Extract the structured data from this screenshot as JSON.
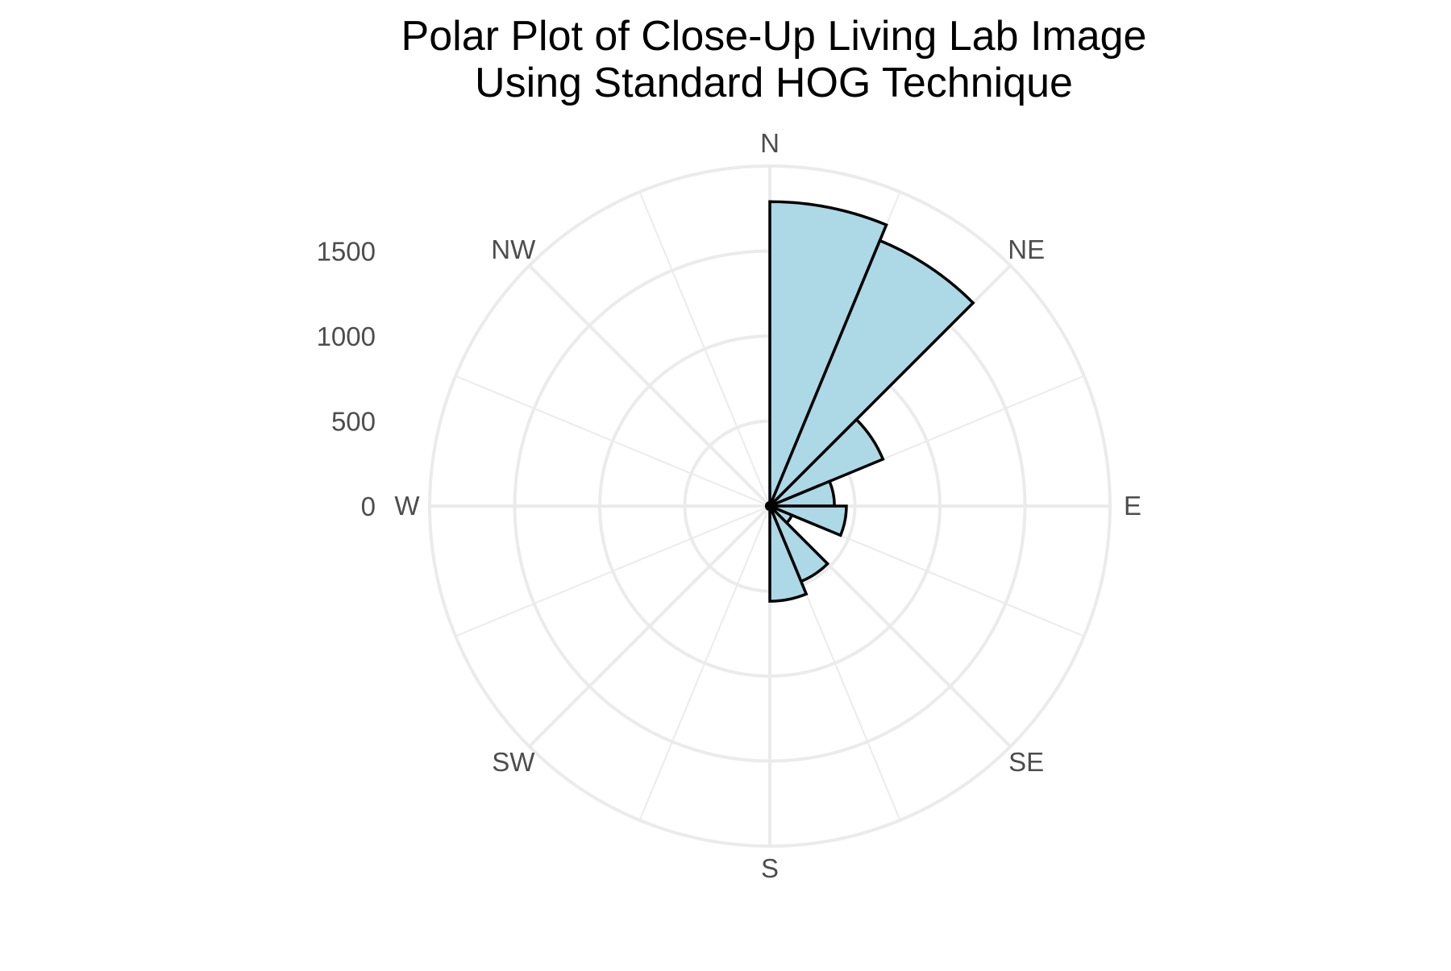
{
  "chart_data": {
    "type": "bar",
    "polar": true,
    "title_lines": [
      "Polar Plot of Close-Up Living Lab Image",
      "Using Standard HOG Technique"
    ],
    "directions": [
      "N",
      "NE",
      "E",
      "SE",
      "S",
      "SW",
      "W",
      "NW"
    ],
    "radial_ticks": [
      "0",
      "500",
      "1000",
      "1500"
    ],
    "radial_tick_values": [
      0,
      500,
      1000,
      1500
    ],
    "rmax": 2000,
    "bin_width_deg": 22.5,
    "bins": [
      {
        "start_deg": 0,
        "value": 1790
      },
      {
        "start_deg": 22.5,
        "value": 1690
      },
      {
        "start_deg": 45,
        "value": 720
      },
      {
        "start_deg": 67.5,
        "value": 380
      },
      {
        "start_deg": 90,
        "value": 450
      },
      {
        "start_deg": 112.5,
        "value": 140
      },
      {
        "start_deg": 135,
        "value": 480
      },
      {
        "start_deg": 157.5,
        "value": 560
      },
      {
        "start_deg": 180,
        "value": 20
      },
      {
        "start_deg": 202.5,
        "value": 20
      },
      {
        "start_deg": 225,
        "value": 20
      },
      {
        "start_deg": 247.5,
        "value": 20
      },
      {
        "start_deg": 270,
        "value": 20
      },
      {
        "start_deg": 292.5,
        "value": 20
      },
      {
        "start_deg": 315,
        "value": 20
      },
      {
        "start_deg": 337.5,
        "value": 20
      }
    ],
    "fill_color": "#add8e6",
    "stroke_color": "#000000",
    "grid_color": "#ebebeb",
    "grid": true,
    "legend": "none"
  }
}
